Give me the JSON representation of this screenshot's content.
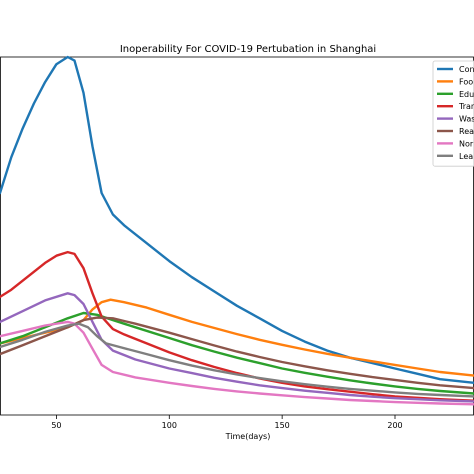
{
  "chart_data": {
    "type": "line",
    "title": "Inoperability For COVID-19 Pertubation in Shanghai",
    "xlabel": "Time(days)",
    "ylabel": "",
    "xlim": [
      25,
      235
    ],
    "ylim": [
      0,
      1
    ],
    "xticks": [
      50,
      100,
      150,
      200
    ],
    "grid": false,
    "legend_position": "top-right",
    "series": [
      {
        "name": "Con",
        "color": "#1f77b4",
        "points": [
          [
            25,
            0.62
          ],
          [
            30,
            0.72
          ],
          [
            35,
            0.8
          ],
          [
            40,
            0.87
          ],
          [
            45,
            0.93
          ],
          [
            50,
            0.98
          ],
          [
            55,
            1.0
          ],
          [
            58,
            0.99
          ],
          [
            62,
            0.9
          ],
          [
            66,
            0.75
          ],
          [
            70,
            0.62
          ],
          [
            75,
            0.56
          ],
          [
            80,
            0.53
          ],
          [
            90,
            0.48
          ],
          [
            100,
            0.43
          ],
          [
            110,
            0.385
          ],
          [
            120,
            0.345
          ],
          [
            130,
            0.305
          ],
          [
            140,
            0.27
          ],
          [
            150,
            0.235
          ],
          [
            160,
            0.205
          ],
          [
            170,
            0.18
          ],
          [
            180,
            0.16
          ],
          [
            190,
            0.145
          ],
          [
            200,
            0.13
          ],
          [
            210,
            0.115
          ],
          [
            220,
            0.1
          ],
          [
            235,
            0.09
          ]
        ]
      },
      {
        "name": "Foo",
        "color": "#ff7f0e",
        "points": [
          [
            25,
            0.2
          ],
          [
            35,
            0.215
          ],
          [
            45,
            0.23
          ],
          [
            55,
            0.245
          ],
          [
            62,
            0.265
          ],
          [
            66,
            0.295
          ],
          [
            70,
            0.315
          ],
          [
            74,
            0.322
          ],
          [
            80,
            0.315
          ],
          [
            90,
            0.3
          ],
          [
            100,
            0.28
          ],
          [
            110,
            0.26
          ],
          [
            120,
            0.243
          ],
          [
            130,
            0.226
          ],
          [
            140,
            0.21
          ],
          [
            150,
            0.196
          ],
          [
            160,
            0.183
          ],
          [
            170,
            0.171
          ],
          [
            180,
            0.16
          ],
          [
            190,
            0.15
          ],
          [
            200,
            0.14
          ],
          [
            210,
            0.13
          ],
          [
            220,
            0.12
          ],
          [
            235,
            0.11
          ]
        ]
      },
      {
        "name": "Edu",
        "color": "#2ca02c",
        "points": [
          [
            25,
            0.2
          ],
          [
            35,
            0.22
          ],
          [
            45,
            0.245
          ],
          [
            55,
            0.27
          ],
          [
            62,
            0.285
          ],
          [
            68,
            0.28
          ],
          [
            75,
            0.265
          ],
          [
            85,
            0.245
          ],
          [
            100,
            0.215
          ],
          [
            110,
            0.195
          ],
          [
            120,
            0.177
          ],
          [
            130,
            0.16
          ],
          [
            140,
            0.145
          ],
          [
            150,
            0.13
          ],
          [
            160,
            0.118
          ],
          [
            170,
            0.107
          ],
          [
            180,
            0.097
          ],
          [
            190,
            0.088
          ],
          [
            200,
            0.08
          ],
          [
            210,
            0.073
          ],
          [
            220,
            0.067
          ],
          [
            235,
            0.06
          ]
        ]
      },
      {
        "name": "Tran",
        "color": "#d62728",
        "points": [
          [
            25,
            0.33
          ],
          [
            30,
            0.35
          ],
          [
            40,
            0.4
          ],
          [
            45,
            0.425
          ],
          [
            50,
            0.445
          ],
          [
            55,
            0.455
          ],
          [
            58,
            0.45
          ],
          [
            62,
            0.41
          ],
          [
            66,
            0.34
          ],
          [
            70,
            0.275
          ],
          [
            75,
            0.24
          ],
          [
            80,
            0.225
          ],
          [
            90,
            0.2
          ],
          [
            100,
            0.175
          ],
          [
            110,
            0.153
          ],
          [
            120,
            0.134
          ],
          [
            130,
            0.117
          ],
          [
            140,
            0.102
          ],
          [
            150,
            0.09
          ],
          [
            160,
            0.08
          ],
          [
            170,
            0.072
          ],
          [
            180,
            0.065
          ],
          [
            190,
            0.058
          ],
          [
            200,
            0.052
          ],
          [
            210,
            0.048
          ],
          [
            220,
            0.044
          ],
          [
            235,
            0.04
          ]
        ]
      },
      {
        "name": "Was",
        "color": "#9467bd",
        "points": [
          [
            25,
            0.26
          ],
          [
            35,
            0.29
          ],
          [
            45,
            0.32
          ],
          [
            55,
            0.34
          ],
          [
            58,
            0.335
          ],
          [
            62,
            0.31
          ],
          [
            66,
            0.26
          ],
          [
            70,
            0.21
          ],
          [
            75,
            0.18
          ],
          [
            85,
            0.155
          ],
          [
            100,
            0.13
          ],
          [
            110,
            0.117
          ],
          [
            120,
            0.104
          ],
          [
            130,
            0.093
          ],
          [
            140,
            0.083
          ],
          [
            150,
            0.075
          ],
          [
            160,
            0.068
          ],
          [
            170,
            0.062
          ],
          [
            180,
            0.056
          ],
          [
            190,
            0.051
          ],
          [
            200,
            0.047
          ],
          [
            210,
            0.044
          ],
          [
            220,
            0.041
          ],
          [
            235,
            0.038
          ]
        ]
      },
      {
        "name": "Rea",
        "color": "#8c564b",
        "points": [
          [
            25,
            0.17
          ],
          [
            35,
            0.195
          ],
          [
            45,
            0.22
          ],
          [
            55,
            0.245
          ],
          [
            62,
            0.265
          ],
          [
            68,
            0.272
          ],
          [
            75,
            0.27
          ],
          [
            85,
            0.255
          ],
          [
            100,
            0.23
          ],
          [
            110,
            0.212
          ],
          [
            120,
            0.194
          ],
          [
            130,
            0.177
          ],
          [
            140,
            0.162
          ],
          [
            150,
            0.148
          ],
          [
            160,
            0.136
          ],
          [
            170,
            0.125
          ],
          [
            180,
            0.115
          ],
          [
            190,
            0.106
          ],
          [
            200,
            0.098
          ],
          [
            210,
            0.09
          ],
          [
            220,
            0.083
          ],
          [
            235,
            0.075
          ]
        ]
      },
      {
        "name": "Nor",
        "color": "#e377c2",
        "points": [
          [
            25,
            0.22
          ],
          [
            35,
            0.235
          ],
          [
            45,
            0.25
          ],
          [
            55,
            0.26
          ],
          [
            58,
            0.255
          ],
          [
            62,
            0.23
          ],
          [
            66,
            0.185
          ],
          [
            70,
            0.14
          ],
          [
            75,
            0.12
          ],
          [
            85,
            0.105
          ],
          [
            100,
            0.09
          ],
          [
            110,
            0.081
          ],
          [
            120,
            0.073
          ],
          [
            130,
            0.066
          ],
          [
            140,
            0.06
          ],
          [
            150,
            0.055
          ],
          [
            160,
            0.05
          ],
          [
            170,
            0.046
          ],
          [
            180,
            0.042
          ],
          [
            190,
            0.039
          ],
          [
            200,
            0.036
          ],
          [
            210,
            0.034
          ],
          [
            220,
            0.032
          ],
          [
            235,
            0.03
          ]
        ]
      },
      {
        "name": "Lea",
        "color": "#7f7f7f",
        "points": [
          [
            25,
            0.19
          ],
          [
            35,
            0.21
          ],
          [
            45,
            0.232
          ],
          [
            55,
            0.25
          ],
          [
            60,
            0.255
          ],
          [
            64,
            0.245
          ],
          [
            68,
            0.22
          ],
          [
            72,
            0.2
          ],
          [
            78,
            0.19
          ],
          [
            90,
            0.17
          ],
          [
            100,
            0.153
          ],
          [
            110,
            0.138
          ],
          [
            120,
            0.125
          ],
          [
            130,
            0.113
          ],
          [
            140,
            0.103
          ],
          [
            150,
            0.094
          ],
          [
            160,
            0.086
          ],
          [
            170,
            0.079
          ],
          [
            180,
            0.073
          ],
          [
            190,
            0.068
          ],
          [
            200,
            0.063
          ],
          [
            210,
            0.059
          ],
          [
            220,
            0.056
          ],
          [
            235,
            0.052
          ]
        ]
      }
    ]
  }
}
